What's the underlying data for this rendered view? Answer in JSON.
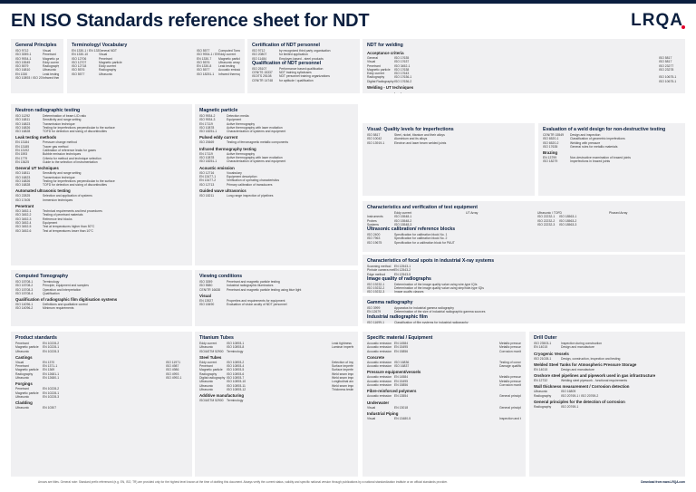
{
  "header": {
    "title": "EN ISO Standards reference sheet for NDT",
    "logo": "LRQA"
  },
  "panels": {
    "general": {
      "title": "General Principles",
      "rows": [
        [
          "ISO 9712",
          "Visual"
        ],
        [
          "ISO 3059-1",
          "Penetrant"
        ],
        [
          "ISO 9934-1",
          "Magnetic particle"
        ],
        [
          "ISO 15549",
          "Eddy current"
        ],
        [
          "ISO 5579",
          "Radiography"
        ],
        [
          "ISO 16810",
          "Ultrasonic"
        ],
        [
          "EN 1330",
          "Leak testing"
        ],
        [
          "ISO 10893 / ISO 20769",
          "Infrared thermography"
        ]
      ]
    },
    "terminology": {
      "title": "Terminology/ Vocabulary",
      "rows": [
        [
          "EN 1330-1 / EN 1330-2",
          "General NDT",
          "ISO 5577",
          "Computed Tomography"
        ],
        [
          "EN 1330-10",
          "Visual",
          "ISO 9934-1 / EN 1330-5",
          "Eddy current"
        ],
        [
          "ISO 12706",
          "Penetrant",
          "EN 1330-7",
          "Magnetic particle"
        ],
        [
          "ISO 12707",
          "Magnetic particle",
          "ISO 5576",
          "Ultrasonic array"
        ],
        [
          "ISO 12718",
          "Eddy current",
          "EN 1330-8",
          "Leak testing"
        ],
        [
          "ISO 5576",
          "Radiography",
          "ISO 5577",
          "Acoustic emission"
        ],
        [
          "ISO 5577",
          "Ultrasonic",
          "ISO 18251-1",
          "Infrared thermography"
        ]
      ]
    },
    "cert": {
      "title": "Certification of NDT personnel",
      "rows": [
        [
          "ISO 9712",
          "by recognized third party organisation"
        ],
        [
          "ISO 20807",
          "for limited application"
        ],
        [
          "ISO 11484",
          "Employer-based - steel products"
        ]
      ],
      "title2": "Qualification of NDT personnel",
      "rows2": [
        [
          "ISO 25107",
          "Performance based qualification"
        ],
        [
          "CEN/TS 15337",
          "NDT training syllabuses"
        ],
        [
          "ISO/TS 25108",
          "NDT personnel training organizations"
        ],
        [
          "CEN/TR 14748",
          "for aptitude / qualification"
        ]
      ]
    },
    "welding": {
      "title": "NDT for welding",
      "title_b": "Acceptance criteria",
      "title_c": "Welding - UT techniques",
      "title_d": "Acceptance criteria",
      "rows": [
        [
          "General",
          "ISO 17635",
          "ISO 5817"
        ],
        [
          "Visual",
          "ISO 17637",
          "ISO 5817"
        ],
        [
          "Penetrant",
          "ISO 3452-1",
          "ISO 23277"
        ],
        [
          "Magnetic particle",
          "ISO 17638",
          "ISO 23278"
        ],
        [
          "Eddy current",
          "ISO 17643",
          ""
        ],
        [
          "Radiography",
          "ISO 17636-1",
          "ISO 10675-1"
        ],
        [
          "Digital Radiography",
          "ISO 17636-2",
          "ISO 10675-1"
        ]
      ],
      "ut_rows": [
        [
          "Ultrasonic",
          "ISO 17640",
          "For manual UT or full penetration joints of ferritic steel thickness ≥ 8mm",
          "ISO 11666"
        ],
        [
          "Ultrasonic",
          "ISO 22825",
          "For Time of Flight (TOFD) on full penetration joints of ferritic steel thickness ≥ 6mm",
          "ISO 15626"
        ],
        [
          "Ultrasonic",
          "ISO 13588",
          "For Phased Array Ultrasonic (PAUT) on full penetration joints",
          "ISO 19285"
        ],
        [
          "Ultrasonic",
          "ISO 10863",
          "For Phased Array Ultrasonic on full penetration joints of thin walled steel components",
          "ISO 19285"
        ],
        [
          "Ultrasonic",
          "ISO 23864",
          "For TFM/FMC Ultrasonic on full penetration joints of ferritic steel thickness ≥ 6mm",
          "ISO 19285"
        ],
        [
          "Ultrasonic",
          "ISO 22232",
          "For development of ultrasonic testing technique for welds in austenitic steels",
          "ISO 22825"
        ],
        [
          "Ultrasonic",
          "ISO 16826",
          "Characterisation of discontinuities in welds",
          ""
        ]
      ]
    },
    "neutron": {
      "title": "Neutron radiographic testing",
      "rows": [
        [
          "ISO 11292",
          "Determination of beam L/D ratio"
        ]
      ],
      "sub1": "Leak testing methods",
      "rows1": [
        [
          "EN 13184",
          "Pressure change method"
        ],
        [
          "EN 13185",
          "Tracer gas method"
        ],
        [
          "EN 13192",
          "Calibration of reference leaks for gases"
        ],
        [
          "EN 1593",
          "Bubble emission techniques"
        ],
        [
          "EN 1779",
          "Criteria for method and technique selection"
        ],
        [
          "EN 13625",
          "Guide to the selection of instrumentation"
        ]
      ],
      "sub2": "General UT techniques",
      "rows2": [
        [
          "ISO 16811",
          "Sensitivity and range setting"
        ],
        [
          "ISO 16823",
          "Transmission technique"
        ],
        [
          "ISO 16826",
          "Testing for imperfections perpendicular to the surface"
        ],
        [
          "ISO 16828",
          "TOFD for detection and sizing of discontinuities"
        ]
      ],
      "sub3": "Automated ultrasonic testing",
      "rows3": [
        [
          "ISO 22825",
          "Selection and application of systems"
        ],
        [
          "ISO 17405",
          "Immersion techniques"
        ]
      ],
      "sub4": "Penetrant",
      "rows4": [
        [
          "ISO 3452-1",
          "Technical requirements and test procedures"
        ],
        [
          "ISO 3452-2",
          "Testing of penetrant materials"
        ],
        [
          "ISO 3452-3",
          "Reference test blocks"
        ],
        [
          "ISO 3452-4",
          "Equipment"
        ],
        [
          "ISO 3452-5",
          "Test at temperatures higher than 50°C"
        ],
        [
          "ISO 3452-6",
          "Test at temperatures lower than 10°C"
        ]
      ]
    },
    "mag": {
      "title": "Magnetic particle",
      "rows": [
        [
          "ISO 9934-2",
          "Detection media"
        ],
        [
          "ISO 9934-3",
          "Equipment"
        ]
      ],
      "sub1": "Pulsed eddy current",
      "rows1": [
        [
          "ISO 20669",
          "Testing of ferromagnetic metallic components"
        ]
      ],
      "sub2": "Infrared thermography testing",
      "rows2": [
        [
          "EN 17119",
          "Active thermography"
        ],
        [
          "ISO 10878",
          "Active thermography with laser excitation"
        ],
        [
          "ISO 18251-1",
          "Characterization of systems and equipment"
        ]
      ],
      "sub3": "Acoustic emission",
      "rows3": [
        [
          "ISO 12716",
          "Vocabulary"
        ],
        [
          "EN 13477-1",
          "Equipment description"
        ],
        [
          "EN 13477-2",
          "Verification of operating characteristics"
        ],
        [
          "ISO 12713",
          "Primary calibration of transducers"
        ]
      ],
      "sub4": "Guided wave ultrasonics",
      "rows4": [
        [
          "ISO 18211",
          "Long range inspection of pipelines"
        ]
      ]
    },
    "visual": {
      "title": "Visual: Quality levels for imperfections",
      "rows": [
        [
          "ISO 5817",
          "Steel, nickel, titanium and their alloys"
        ],
        [
          "ISO 10042",
          "Aluminium and its alloys"
        ],
        [
          "ISO 13919-1",
          "Electron and laser beam welded joints"
        ]
      ]
    },
    "flaws": {
      "title": "Evaluation of a weld design for non-destructive testing",
      "rows": [
        [
          "CEN/TR 15549",
          "Design and inspection"
        ],
        [
          "ISO 6520-1",
          "Classification of geometric imperfections"
        ],
        [
          "ISO 6520-2",
          "Welding with pressure"
        ],
        [
          "ISO 17635",
          "General rules for metallic materials"
        ]
      ],
      "sub1": "Brazing",
      "rows1": [
        [
          "EN 13799",
          "Non-destructive examination of brazed joints"
        ],
        [
          "ISO 18279",
          "Imperfections in brazed joints"
        ]
      ]
    },
    "ct": {
      "title": "Computed Tomography",
      "rows": [
        [
          "ISO 15708-1",
          "Terminology"
        ],
        [
          "ISO 15708-2",
          "Principle, equipment and samples"
        ],
        [
          "ISO 15708-3",
          "Operation and interpretation"
        ],
        [
          "ISO 15708-4",
          "Qualification"
        ]
      ],
      "sub1": "Qualification of radiographic film digitisation systems",
      "rows1": [
        [
          "ISO 14096-1",
          "Definitions and qualitative control"
        ],
        [
          "ISO 14096-2",
          "Minimum requirements"
        ]
      ]
    },
    "viewing": {
      "title": "Viewing conditions",
      "rows": [
        [
          "ISO 3059",
          "Penetrant and magnetic particle testing"
        ],
        [
          "ISO 5580",
          "Industrial radiographic illuminators"
        ],
        [
          "CEN/TR 16638",
          "Penetrant and magnetic particle testing using blue light"
        ]
      ],
      "sub1": "Visual",
      "rows1": [
        [
          "EN 13927",
          "Properties and requirements for equipment"
        ],
        [
          "ISO 18490",
          "Evaluation of vision acuity of NDT personnel"
        ]
      ]
    },
    "characteristics": {
      "title": "Characteristics and verification of test equipment",
      "cols": [
        "Eddy current",
        "UT Array",
        "Ultrasonic / TOFD",
        "Phased Array"
      ],
      "rows": [
        [
          "Instruments",
          "ISO 15548-1",
          "",
          "ISO 22232-1",
          "ISO 18563-1"
        ],
        [
          "Probes",
          "ISO 15548-2",
          "",
          "ISO 22232-2",
          "ISO 18563-2"
        ],
        [
          "Systems",
          "ISO 15548-3",
          "",
          "ISO 22232-3",
          "ISO 18563-3"
        ]
      ],
      "title2": "Ultrasonic calibration/ reference blocks",
      "rows2": [
        [
          "ISO 2400",
          "Specification for calibration block No. 1"
        ],
        [
          "ISO 7963",
          "Specification for calibration block No. 2"
        ],
        [
          "ISO 19675",
          "Specification for a calibration block for PAUT"
        ]
      ]
    },
    "xray": {
      "title": "Characteristics of focal spots in industrial X-ray systems",
      "rows": [
        [
          "Scanning method",
          "EN 12543-1"
        ],
        [
          "Pinhole camera method",
          "EN 12543-2"
        ],
        [
          "Edge method",
          "EN 12543-5"
        ]
      ],
      "title2": "Image quality of radiographs",
      "rows2": [
        [
          "ISO 19232-1",
          "Determination of the image quality value using wire-type IQIs"
        ],
        [
          "ISO 19232-2",
          "Determination of the image quality value using step/hole-type IQIs"
        ],
        [
          "ISO 19232-3",
          "Image quality classes"
        ],
        [
          "ISO 19232-4",
          "Experimental evaluation of image quality values"
        ],
        [
          "ISO 19232-5",
          "Determination of the image unsharpness value using duplex wire-type IQIs"
        ]
      ]
    },
    "gamma": {
      "title": "Gamma radiography",
      "rows": [
        [
          "ISO 3999",
          "Apparatus for industrial gamma radiography"
        ],
        [
          "EN 12679",
          "Determination of the size of industrial radiographic gamma sources"
        ]
      ],
      "title2": "Industrial radiographic film",
      "rows2": [
        [
          "ISO 11699-1",
          "Classification of film systems for industrial radiography"
        ],
        [
          "ISO 11699-2",
          "Control of film processing by means of reference values"
        ]
      ]
    },
    "product": {
      "title": "Product standards",
      "sub1": "Castings",
      "rows1": [
        [
          "Visual",
          "EN 1370",
          "ISO 11971"
        ],
        [
          "Penetrant",
          "EN 1371-1",
          "ISO 4987"
        ],
        [
          "Magnetic particle",
          "EN 1369",
          "ISO 4986"
        ],
        [
          "Radiography",
          "EN 12681-1",
          "ISO 4993"
        ],
        [
          "Ultrasonic",
          "EN 12680-1",
          "ISO 4992-1"
        ]
      ],
      "sub2": "Forgings",
      "rows2": [
        [
          "Penetrant",
          "EN 10228-2",
          ""
        ],
        [
          "Magnetic particle",
          "EN 10228-1",
          ""
        ],
        [
          "Ultrasonic",
          "EN 10228-3",
          ""
        ]
      ],
      "sub3": "Cladding",
      "rows3": [
        [
          "Ultrasonic",
          "EN 10307",
          ""
        ]
      ]
    },
    "titanium": {
      "title": "Titanium Tubes",
      "rows": [
        [
          "Eddy current",
          "ISO 10893-1",
          "Leak tightness"
        ],
        [
          "Ultrasonic",
          "ISO 10893-8",
          "Laminar imperfections"
        ]
      ],
      "sub1": "Steel Tubes",
      "rows1": [
        [
          "Eddy current",
          "ISO 10893-2",
          "Detection of imperfections"
        ],
        [
          "Penetrant",
          "ISO 10893-4",
          "Surface imperfections"
        ],
        [
          "Magnetic particle",
          "ISO 10893-5",
          "Surface imperfections"
        ],
        [
          "Radiography",
          "ISO 10893-6",
          "Weld seam imperfections"
        ],
        [
          "Digital radiography",
          "ISO 10893-7",
          "Weld seam imperfections"
        ],
        [
          "Ultrasonic",
          "ISO 10893-10",
          "Longitudinal and/or transverse imperfections"
        ],
        [
          "Ultrasonic",
          "ISO 10893-11",
          "Weld seam imperfections"
        ],
        [
          "Ultrasonic",
          "ISO 10893-12",
          "Thickness testing"
        ]
      ],
      "sub2": "Additive manufacturing",
      "rows2": [
        [
          "ISO/ASTM 52900",
          "Terminology"
        ]
      ]
    },
    "specific": {
      "title": "Specific material / Equipment",
      "sub1": "Concrete",
      "rows1": [
        [
          "Acoustic emission",
          "ISO 16836",
          "Testing of concrete structures"
        ],
        [
          "Acoustic emission",
          "ISO 16837",
          "Damage qualification of reinforced concrete beams"
        ]
      ],
      "sub2": "Pressure equipment/vessels",
      "rows2": [
        [
          "Acoustic emission",
          "EN 14584",
          "Metallic pressure equipment"
        ],
        [
          "Acoustic emission",
          "EN 15495",
          "Metallic pressure equipment during proof testing"
        ],
        [
          "Acoustic emission",
          "EN 15856",
          "Corrosion monitoring"
        ]
      ],
      "sub3": "Fibre-reinforced polymers",
      "rows3": [
        [
          "Acoustic emission",
          "EN 13554",
          "General principles"
        ]
      ],
      "sub4": "Underwater",
      "rows4": [
        [
          "Visual",
          "EN 13018",
          "General principles"
        ]
      ],
      "sub5": "Industrial Piping",
      "rows5": [
        [
          "Visual",
          "EN 13480-5",
          "Inspection and testing"
        ]
      ]
    },
    "drill": {
      "title": "Drill Outer",
      "rows": [
        [
          "ISO 23503-1",
          "Inspection during construction"
        ]
      ],
      "sub1": "Cryogenic Vessels",
      "rows1": [
        [
          "ISO 21028-1",
          "Design, construction, inspection and testing"
        ]
      ],
      "sub2": "Welded Steel Tanks for Atmospheric Pressure Storage",
      "rows2": [
        [
          "EN 14015",
          "Design and manufacture"
        ]
      ],
      "sub3": "Onshore steel pipelines and pipework used in gas infrastructure",
      "rows3": [
        [
          "EN 12732",
          "Welding steel pipework - functional requirements"
        ]
      ],
      "sub4": "Wall thickness measurement / Corrosion detection",
      "rows4": [
        [
          "Ultrasonic",
          "ISO 16809"
        ],
        [
          "Radiography",
          "ISO 20769-1 / ISO 20769-2"
        ]
      ],
      "sub5": "General principles for the detection of corrosion",
      "rows5": [
        [
          "Radiography",
          "ISO 20769-1"
        ]
      ]
    }
  },
  "footer": {
    "note": "Arrows are titles. General note: Standard prefix referenced (e.g. EN, ISO, TR) are provided only for the highest level known at the time of drafting this document. Always verify the current status, validity and specific national version through publications by a national standardization institute or an official standards provider.",
    "link": "Download from www.LRQA.com"
  }
}
